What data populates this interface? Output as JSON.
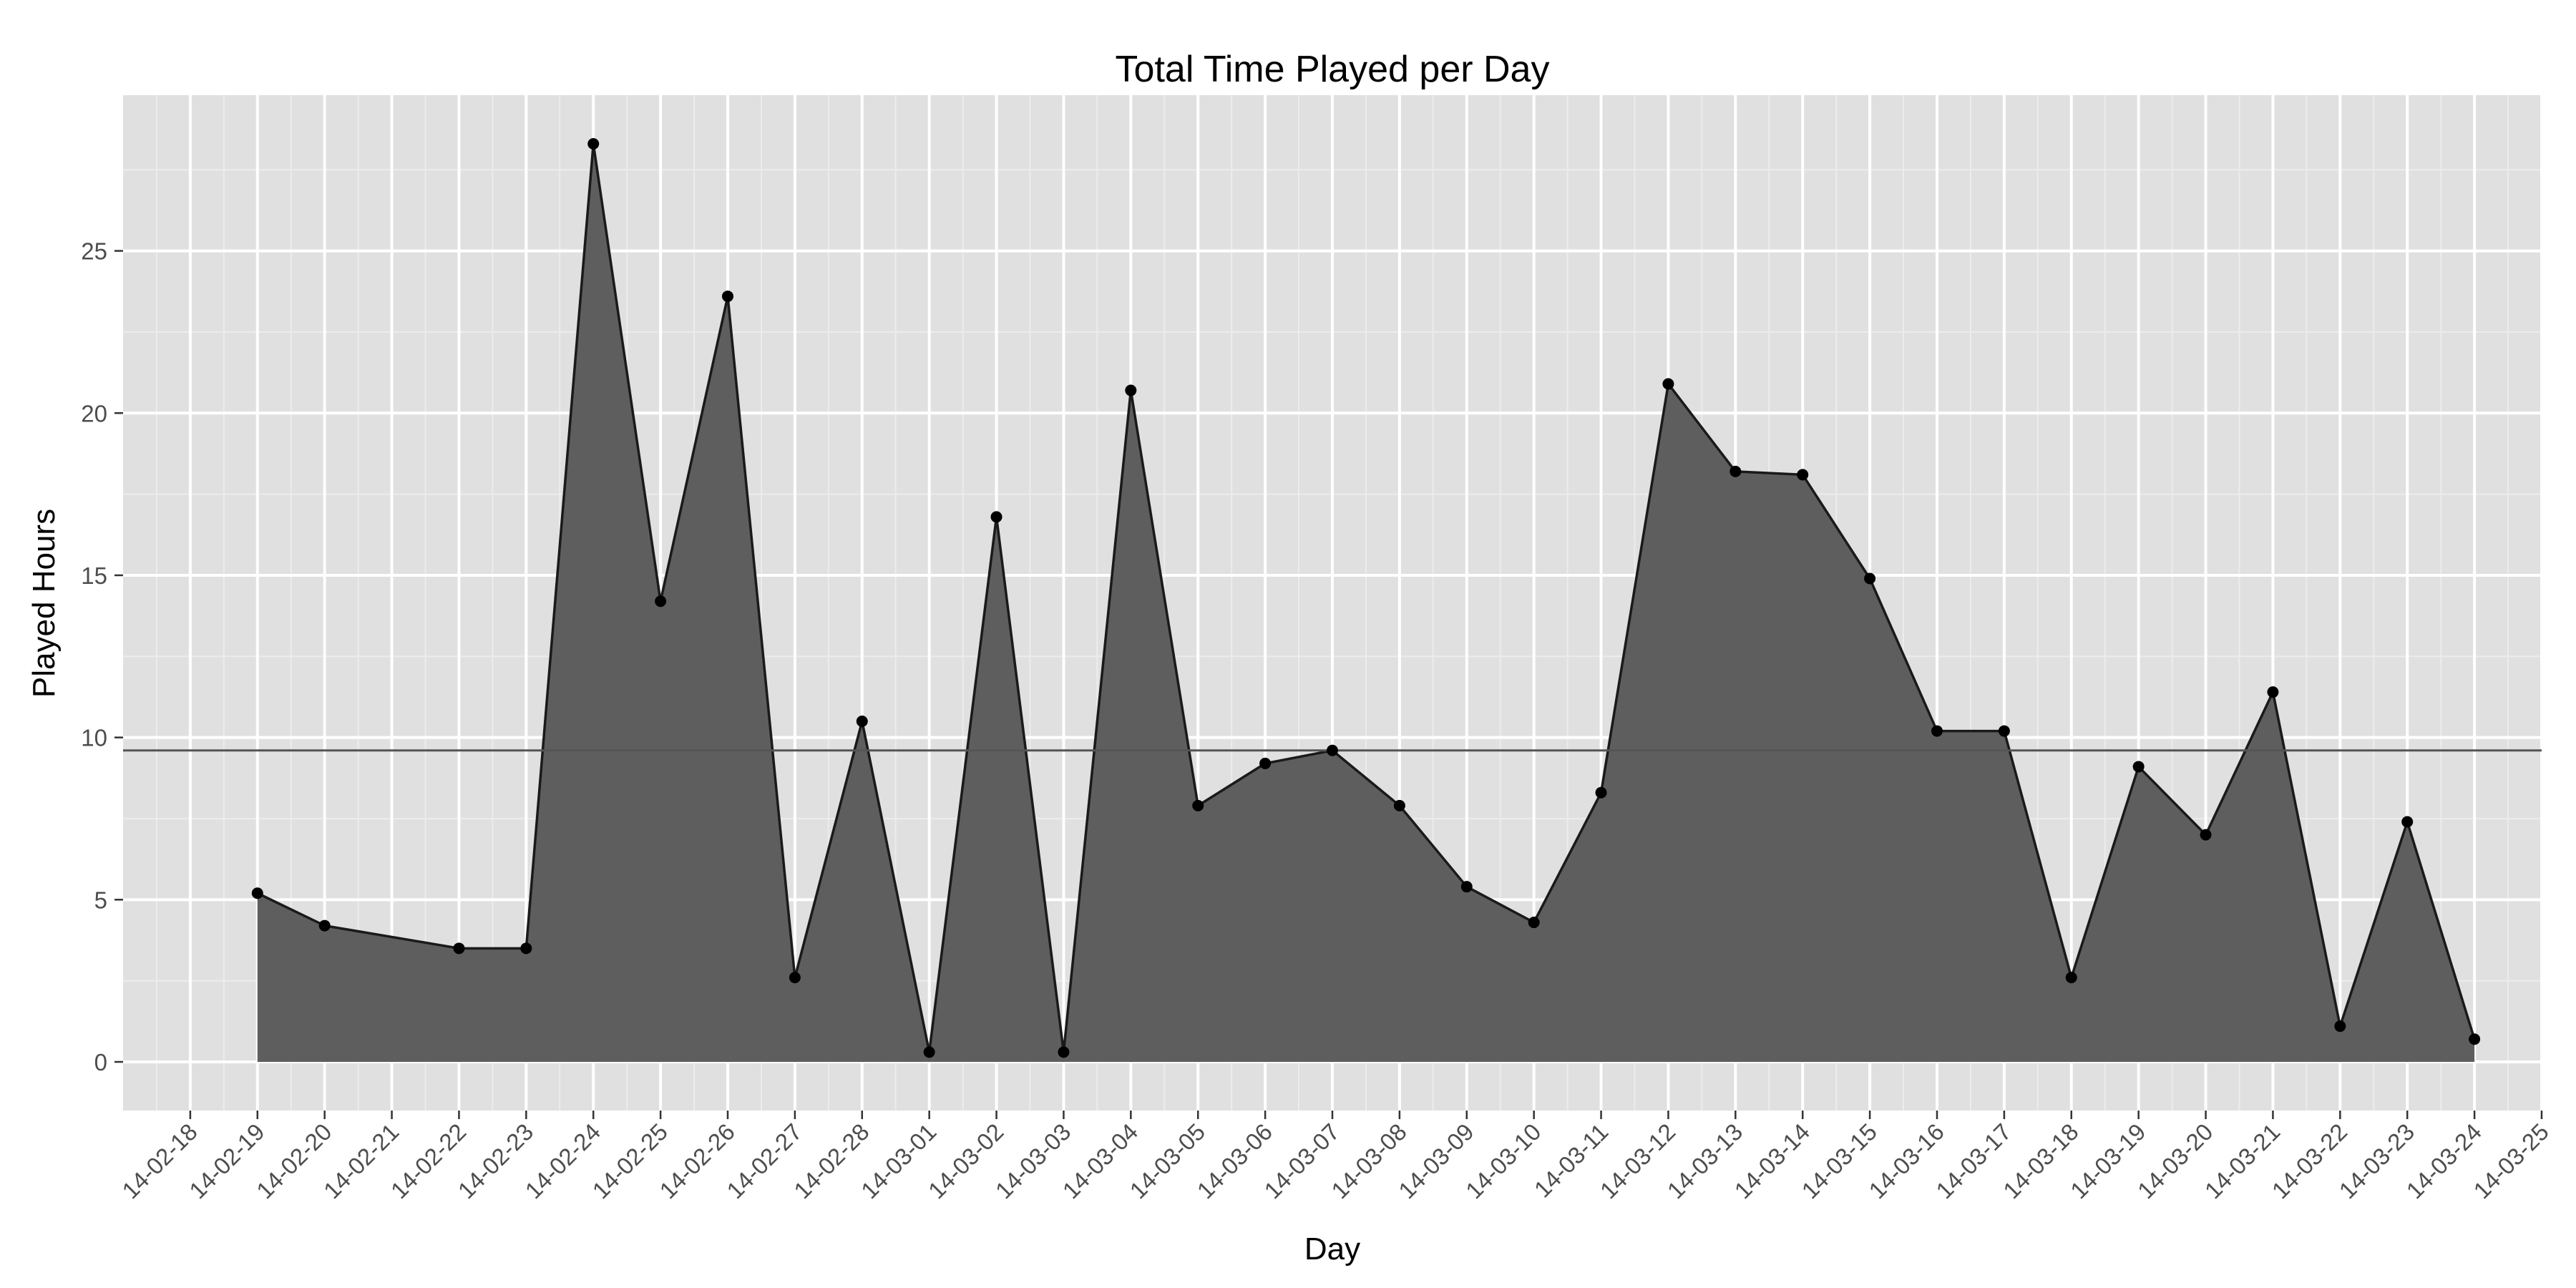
{
  "chart_data": {
    "type": "area",
    "title": "Total Time Played per Day",
    "xlabel": "Day",
    "ylabel": "Played Hours",
    "x_tick_labels": [
      "14-02-18",
      "14-02-19",
      "14-02-20",
      "14-02-21",
      "14-02-22",
      "14-02-23",
      "14-02-24",
      "14-02-25",
      "14-02-26",
      "14-02-27",
      "14-02-28",
      "14-03-01",
      "14-03-02",
      "14-03-03",
      "14-03-04",
      "14-03-05",
      "14-03-06",
      "14-03-07",
      "14-03-08",
      "14-03-09",
      "14-03-10",
      "14-03-11",
      "14-03-12",
      "14-03-13",
      "14-03-14",
      "14-03-15",
      "14-03-16",
      "14-03-17",
      "14-03-18",
      "14-03-19",
      "14-03-20",
      "14-03-21",
      "14-03-22",
      "14-03-23",
      "14-03-24",
      "14-03-25"
    ],
    "y_ticks": [
      0,
      5,
      10,
      15,
      20,
      25
    ],
    "xlim": [
      "14-02-17",
      "14-03-25"
    ],
    "ylim": [
      -1.5,
      29.8
    ],
    "grid": true,
    "series": [
      {
        "x": [
          "14-02-19",
          "14-02-20",
          "14-02-22",
          "14-02-23",
          "14-02-24",
          "14-02-25",
          "14-02-26",
          "14-02-27",
          "14-02-28",
          "14-03-01",
          "14-03-02",
          "14-03-03",
          "14-03-04",
          "14-03-05",
          "14-03-06",
          "14-03-07",
          "14-03-08",
          "14-03-09",
          "14-03-10",
          "14-03-11",
          "14-03-12",
          "14-03-13",
          "14-03-14",
          "14-03-15",
          "14-03-16",
          "14-03-17",
          "14-03-18",
          "14-03-19",
          "14-03-20",
          "14-03-21",
          "14-03-22",
          "14-03-23",
          "14-03-24"
        ],
        "values": [
          5.2,
          4.2,
          3.5,
          3.5,
          28.3,
          14.2,
          23.6,
          2.6,
          10.5,
          0.3,
          16.8,
          0.3,
          20.7,
          7.9,
          9.2,
          9.6,
          7.9,
          5.4,
          4.3,
          8.3,
          20.9,
          18.2,
          18.1,
          14.9,
          10.2,
          10.2,
          2.6,
          9.1,
          7.0,
          11.4,
          1.1,
          7.4,
          0.7
        ]
      }
    ],
    "reference_line": 9.6,
    "colors": {
      "panel": "#e0e0e0",
      "grid_major": "#ffffff",
      "grid_minor": "#ececec",
      "area_fill": "#5e5e5e",
      "line": "#1a1a1a",
      "point": "#000000",
      "reference_line": "#555555",
      "tick_label": "#4d4d4d"
    }
  }
}
